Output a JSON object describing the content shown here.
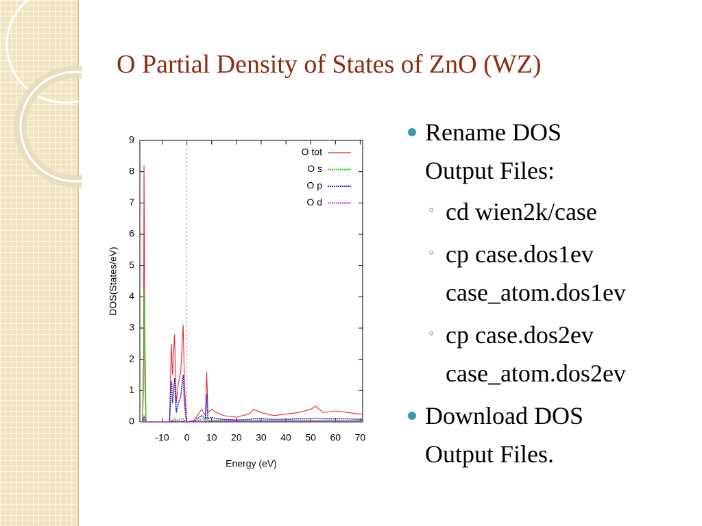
{
  "title": "O Partial Density of States of ZnO (WZ)",
  "bullets": [
    {
      "text": "Rename DOS Output Files:",
      "items": [
        "cd wien2k/case",
        "cp case.dos1ev case_atom.dos1ev",
        "cp case.dos2ev case_atom.dos2ev"
      ]
    },
    {
      "text": "Download DOS Output Files."
    }
  ],
  "chart_data": {
    "type": "line",
    "xlabel": "Energy (eV)",
    "ylabel": "DOS(States/eV)",
    "x": [
      -19,
      -18,
      -17.5,
      -17.3,
      -17,
      -16.5,
      -7,
      -6.3,
      -5.8,
      -5,
      -4.3,
      -3.5,
      -2.5,
      -1.5,
      -1,
      -0.3,
      0,
      3,
      5,
      6,
      7.5,
      8,
      8.5,
      10,
      12,
      15,
      20,
      25,
      27,
      30,
      35,
      40,
      45,
      50,
      52,
      55,
      60,
      65,
      70,
      71
    ],
    "series": [
      {
        "name": "O tot",
        "color": "#e8262a",
        "dash": false,
        "values": [
          0,
          0,
          2,
          8.2,
          3,
          0,
          0,
          2.5,
          1.5,
          2.8,
          0.6,
          1.2,
          1.6,
          3.1,
          1.3,
          0.2,
          0,
          0.05,
          0.3,
          0.4,
          0.2,
          1.6,
          0.3,
          0.4,
          0.3,
          0.2,
          0.15,
          0.25,
          0.4,
          0.3,
          0.2,
          0.25,
          0.3,
          0.4,
          0.5,
          0.3,
          0.35,
          0.3,
          0.25,
          0.25
        ]
      },
      {
        "name": "O s",
        "color": "#1ed21e",
        "dash": true,
        "values": [
          0,
          0,
          1,
          4.2,
          1.5,
          0,
          0,
          0.05,
          0.05,
          0.1,
          0.05,
          0.05,
          0.1,
          0.1,
          0.05,
          0,
          0,
          0,
          0.05,
          0.1,
          0.05,
          0.15,
          0.05,
          0.05,
          0.05,
          0.05,
          0.05,
          0.05,
          0.05,
          0.05,
          0.05,
          0.05,
          0.05,
          0.05,
          0.05,
          0.05,
          0.05,
          0.05,
          0.05,
          0.05
        ]
      },
      {
        "name": "O p",
        "color": "#2222cc",
        "dash": true,
        "values": [
          0,
          0,
          0.1,
          0.2,
          0.1,
          0,
          0,
          1.3,
          0.6,
          1.4,
          0.3,
          0.6,
          0.8,
          1.5,
          0.6,
          0.1,
          0,
          0.02,
          0.15,
          0.2,
          0.1,
          0.9,
          0.1,
          0.15,
          0.1,
          0.08,
          0.06,
          0.08,
          0.1,
          0.1,
          0.08,
          0.08,
          0.1,
          0.1,
          0.12,
          0.1,
          0.1,
          0.1,
          0.08,
          0.08
        ]
      },
      {
        "name": "O d",
        "color": "#e020e0",
        "dash": true,
        "values": [
          0,
          0,
          0.02,
          0.05,
          0.02,
          0,
          0,
          0.03,
          0.02,
          0.03,
          0.02,
          0.02,
          0.02,
          0.03,
          0.02,
          0,
          0,
          0,
          0.02,
          0.02,
          0.02,
          0.02,
          0.02,
          0.02,
          0.02,
          0.02,
          0.02,
          0.02,
          0.02,
          0.02,
          0.02,
          0.02,
          0.02,
          0.02,
          0.02,
          0.02,
          0.02,
          0.02,
          0.02,
          0.02
        ]
      }
    ],
    "xlim": [
      -19,
      71
    ],
    "ylim": [
      0,
      9
    ],
    "xticks": [
      -10,
      0,
      10,
      20,
      30,
      40,
      50,
      60,
      70
    ],
    "yticks": [
      0,
      1,
      2,
      3,
      4,
      5,
      6,
      7,
      8,
      9
    ],
    "reference_line_x": 0,
    "legend": "upper-right"
  }
}
